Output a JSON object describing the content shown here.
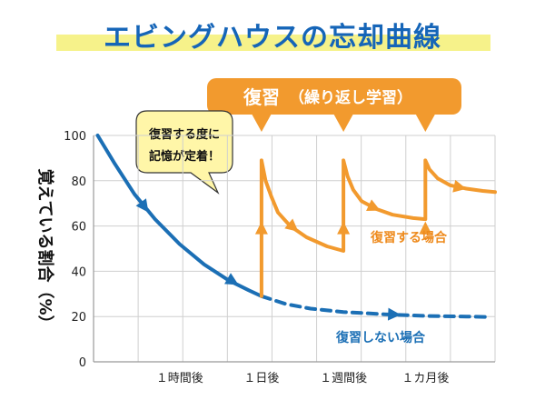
{
  "title": "エビングハウスの忘却曲線",
  "banner": {
    "main": "復習",
    "sub": "（繰り返し学習）"
  },
  "bubble": {
    "lines": [
      "復習する度に",
      "記憶が定着！"
    ]
  },
  "colors": {
    "review": "#f29a2e",
    "no_review": "#1b6fb5",
    "title": "#1565b8",
    "highlight": "#f6f28a"
  },
  "chart_data": {
    "type": "line",
    "title": "エビングハウスの忘却曲線",
    "ylabel": "覚えている割合（%）",
    "xlabel": "",
    "ylim": [
      0,
      100
    ],
    "yticks": [
      "100",
      "80",
      "60",
      "40",
      "20",
      "0"
    ],
    "y_tick_values": [
      100,
      80,
      60,
      40,
      20,
      0
    ],
    "xticks": [
      "１時間後",
      "１日後",
      "１週間後",
      "１カ月後"
    ],
    "x_tick_positions": [
      1,
      2,
      3,
      4
    ],
    "xlim": [
      -0.05,
      4.85
    ],
    "series": [
      {
        "name": "復習しない場合",
        "style": "solid",
        "points": [
          [
            0,
            100
          ],
          [
            0.2,
            88
          ],
          [
            0.45,
            74
          ],
          [
            0.7,
            63
          ],
          [
            1.0,
            52
          ],
          [
            1.3,
            43
          ],
          [
            1.6,
            36
          ],
          [
            1.85,
            31.5
          ],
          [
            2.0,
            29
          ]
        ]
      },
      {
        "name": "復習しない場合",
        "style": "dashed",
        "points": [
          [
            2.0,
            29
          ],
          [
            2.3,
            25.5
          ],
          [
            2.6,
            23.5
          ],
          [
            3.0,
            22
          ],
          [
            3.5,
            21
          ],
          [
            4.0,
            20.3
          ],
          [
            4.5,
            20
          ],
          [
            4.8,
            19.8
          ]
        ]
      },
      {
        "name": "復習する場合",
        "style": "solid",
        "points": [
          [
            2.0,
            29
          ],
          [
            2.0,
            89
          ],
          [
            2.05,
            80
          ],
          [
            2.12,
            73
          ],
          [
            2.2,
            66
          ],
          [
            2.35,
            60
          ],
          [
            2.55,
            55
          ],
          [
            2.8,
            51
          ],
          [
            3.0,
            49
          ],
          [
            3.0,
            89
          ],
          [
            3.05,
            82
          ],
          [
            3.12,
            76
          ],
          [
            3.22,
            71
          ],
          [
            3.4,
            67.5
          ],
          [
            3.6,
            65
          ],
          [
            3.85,
            63.5
          ],
          [
            4.0,
            63
          ],
          [
            4.0,
            89
          ],
          [
            4.05,
            85
          ],
          [
            4.15,
            81
          ],
          [
            4.3,
            78
          ],
          [
            4.5,
            76.5
          ],
          [
            4.7,
            75.5
          ],
          [
            4.85,
            75
          ]
        ]
      }
    ],
    "series_labels": [
      "復習する場合",
      "復習しない場合"
    ],
    "review_points": [
      2,
      3,
      4
    ],
    "grid": true
  }
}
